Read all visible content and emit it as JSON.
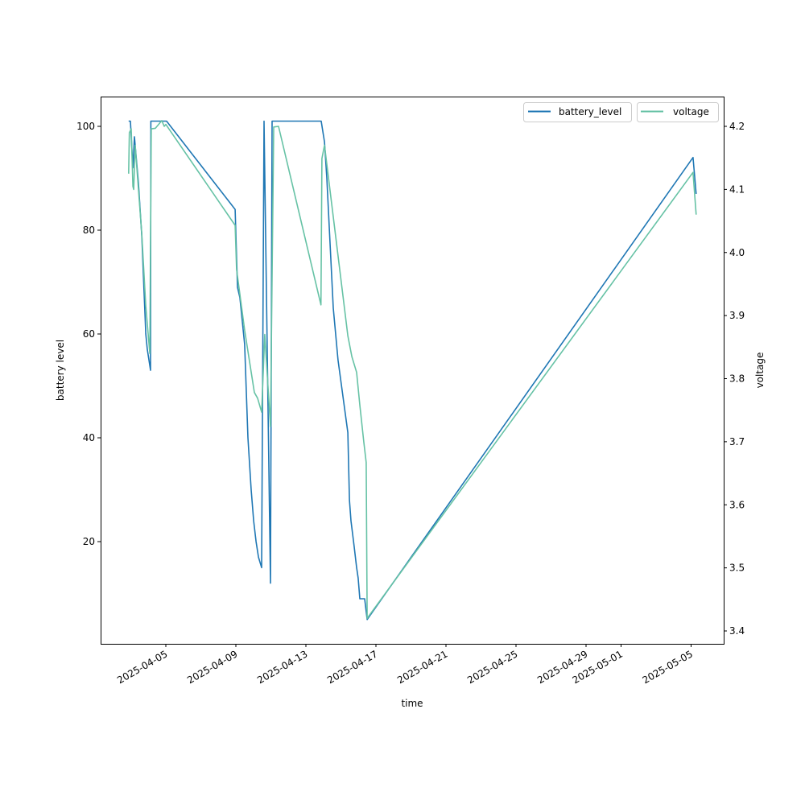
{
  "chart_data": {
    "type": "line",
    "title": "",
    "xlabel": "time",
    "ylabel": "battery level",
    "y2label": "voltage",
    "xlim": [
      "2025-04-01T12:00",
      "2025-05-06T12:00"
    ],
    "ylim": [
      0,
      105.5
    ],
    "y2lim": [
      3.38,
      4.247
    ],
    "xticks": [
      "2025-04-05",
      "2025-04-09",
      "2025-04-13",
      "2025-04-17",
      "2025-04-21",
      "2025-04-25",
      "2025-04-29",
      "2025-05-01",
      "2025-05-05"
    ],
    "yticks": [
      20,
      40,
      60,
      80,
      100
    ],
    "y2ticks": [
      "3.4",
      "3.5",
      "3.6",
      "3.7",
      "3.8",
      "3.9",
      "4.0",
      "4.1",
      "4.2"
    ],
    "grid": false,
    "legend_placement": "top-right",
    "colors": {
      "battery_level": "#1f77b4",
      "voltage": "#66c2a5"
    },
    "series": [
      {
        "name": "battery_level",
        "axis": "left",
        "x": [
          "2025-04-02T21:00",
          "2025-04-02T23:30",
          "2025-04-03T02:50",
          "2025-04-03T05:00",
          "2025-04-03T10:30",
          "2025-04-03T15:00",
          "2025-04-03T20:30",
          "2025-04-03T22:40",
          "2025-04-04T03:00",
          "2025-04-04T03:30",
          "2025-04-04T18:30",
          "2025-04-05T01:00",
          "2025-04-08T23:00",
          "2025-04-09T02:10",
          "2025-04-09T05:30",
          "2025-04-09T12:00",
          "2025-04-09T16:30",
          "2025-04-09T21:00",
          "2025-04-10T00:20",
          "2025-04-10T03:40",
          "2025-04-10T07:00",
          "2025-04-10T11:20",
          "2025-04-10T14:40",
          "2025-04-10T23:30",
          "2025-04-11T01:40",
          "2025-04-13T21:00",
          "2025-04-14T01:30",
          "2025-04-14T04:40",
          "2025-04-14T13:30",
          "2025-04-14T20:00",
          "2025-04-15T09:30",
          "2025-04-15T11:40",
          "2025-04-15T13:50",
          "2025-04-15T18:10",
          "2025-04-15T21:30",
          "2025-04-15T23:40",
          "2025-04-16T01:55",
          "2025-04-16T08:30",
          "2025-04-16T12:00",
          "2025-05-05T02:40",
          "2025-05-05T07:00"
        ],
        "values": [
          101,
          101,
          92,
          98,
          89,
          79,
          60,
          57,
          53,
          101,
          101,
          101,
          84,
          69,
          67,
          58,
          40,
          30,
          24,
          20,
          17,
          15,
          101,
          12,
          101,
          101,
          97,
          90,
          65,
          55,
          41,
          28,
          24,
          19,
          15,
          13,
          9,
          9,
          5,
          94,
          87
        ]
      },
      {
        "name": "voltage",
        "axis": "right",
        "x": [
          "2025-04-02T21:00",
          "2025-04-02T22:00",
          "2025-04-03T00:30",
          "2025-04-03T02:50",
          "2025-04-03T04:00",
          "2025-04-03T06:00",
          "2025-04-03T15:00",
          "2025-04-03T20:30",
          "2025-04-04T02:00",
          "2025-04-04T04:00",
          "2025-04-04T09:40",
          "2025-04-04T18:30",
          "2025-04-04T21:50",
          "2025-04-05T00:00",
          "2025-04-08T23:00",
          "2025-04-09T01:00",
          "2025-04-09T12:00",
          "2025-04-10T01:20",
          "2025-04-10T05:50",
          "2025-04-10T11:20",
          "2025-04-10T15:40",
          "2025-04-10T23:30",
          "2025-04-11T03:50",
          "2025-04-11T10:30",
          "2025-04-13T20:40",
          "2025-04-13T22:00",
          "2025-04-14T01:30",
          "2025-04-15T09:30",
          "2025-04-15T15:00",
          "2025-04-15T21:30",
          "2025-04-16T01:55",
          "2025-04-16T07:20",
          "2025-04-16T10:40",
          "2025-04-16T12:00",
          "2025-05-05T02:40",
          "2025-05-05T07:00"
        ],
        "values": [
          4.125,
          4.19,
          4.196,
          4.105,
          4.1,
          4.17,
          4.03,
          3.915,
          3.84,
          4.196,
          4.197,
          4.209,
          4.2,
          4.203,
          4.043,
          3.973,
          3.877,
          3.778,
          3.769,
          3.747,
          3.87,
          3.724,
          4.199,
          4.2,
          3.917,
          4.149,
          4.17,
          3.868,
          3.835,
          3.81,
          3.758,
          3.7,
          3.667,
          3.42,
          4.127,
          4.06
        ]
      }
    ]
  }
}
